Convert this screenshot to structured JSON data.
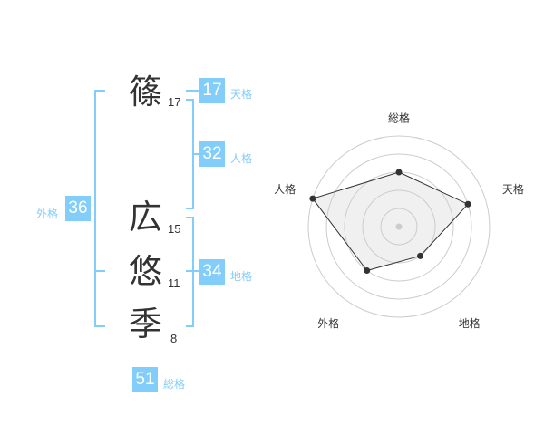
{
  "accent_color": "#82cdf9",
  "name_chars": [
    {
      "char": "篠",
      "strokes": "17"
    },
    {
      "char": "広",
      "strokes": "15"
    },
    {
      "char": "悠",
      "strokes": "11"
    },
    {
      "char": "季",
      "strokes": "8"
    }
  ],
  "kaku": {
    "tenkaku": {
      "label": "天格",
      "value": "17"
    },
    "jinkaku": {
      "label": "人格",
      "value": "32"
    },
    "chikaku": {
      "label": "地格",
      "value": "34"
    },
    "gaikaku": {
      "label": "外格",
      "value": "36"
    },
    "soukaku": {
      "label": "総格",
      "value": "51"
    }
  },
  "chart_data": {
    "type": "radar",
    "axes": [
      "総格",
      "天格",
      "地格",
      "外格",
      "人格"
    ],
    "values": [
      3,
      4,
      2,
      3,
      5
    ],
    "range": [
      0,
      5
    ],
    "rings": 5,
    "fill_color": "#f0f0f0",
    "line_color": "#333333",
    "ring_color": "#cccccc"
  }
}
